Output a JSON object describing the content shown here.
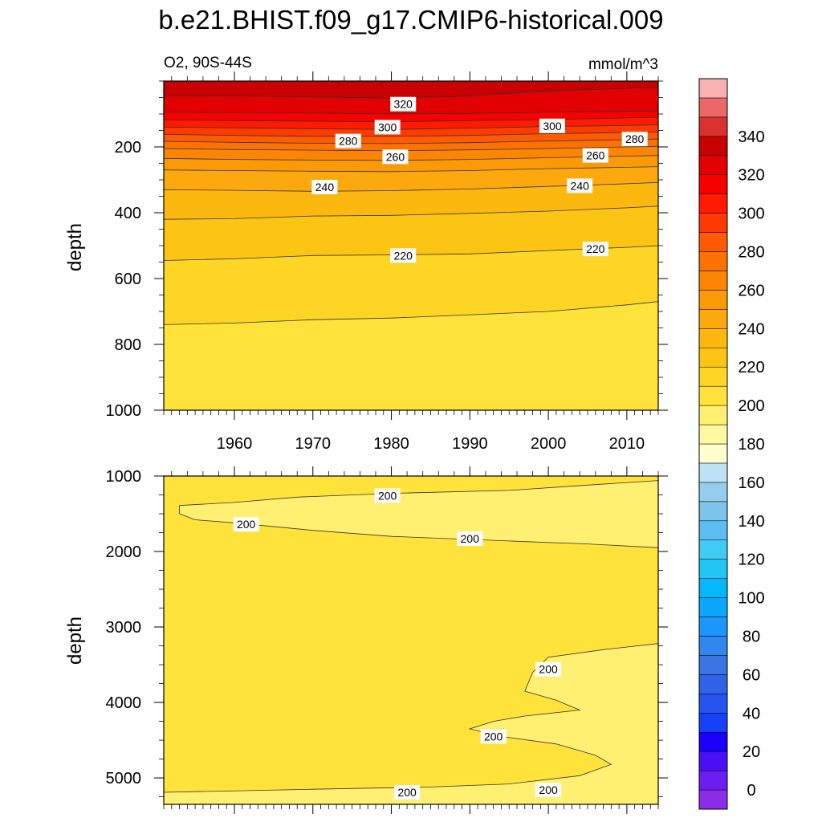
{
  "title": "b.e21.BHIST.f09_g17.CMIP6-historical.009",
  "chart_data": {
    "type": "heatmap",
    "title": "b.e21.BHIST.f09_g17.CMIP6-historical.009",
    "subtitle_left": "O2, 90S-44S",
    "subtitle_right": "mmol/m^3",
    "ylabel": "depth",
    "colorbar": {
      "levels": [
        0,
        10,
        20,
        30,
        40,
        50,
        60,
        70,
        80,
        90,
        100,
        110,
        120,
        130,
        140,
        150,
        160,
        170,
        180,
        190,
        200,
        210,
        220,
        230,
        240,
        250,
        260,
        270,
        280,
        290,
        300,
        310,
        320,
        330,
        340,
        350
      ],
      "labels": [
        "0",
        "20",
        "40",
        "60",
        "80",
        "100",
        "120",
        "140",
        "160",
        "180",
        "200",
        "220",
        "240",
        "260",
        "280",
        "300",
        "320",
        "340"
      ],
      "colors": [
        "#8b2ce8",
        "#6a1ef0",
        "#4a10f5",
        "#1a00fa",
        "#1640f5",
        "#2652ee",
        "#2f63e6",
        "#3a74e0",
        "#2e86ee",
        "#1c96fa",
        "#0aa6ff",
        "#06b8fa",
        "#22c6f5",
        "#40ccf2",
        "#5cbeef",
        "#7cc4ec",
        "#96ccec",
        "#bee2f6",
        "#fffece",
        "#fff8a0",
        "#fff071",
        "#ffe33a",
        "#fdd525",
        "#fdc513",
        "#fcb80f",
        "#fda80c",
        "#fc9906",
        "#fc8604",
        "#fb7102",
        "#fe5b00",
        "#fe3a00",
        "#ff1a00",
        "#f90000",
        "#e30000",
        "#c90000",
        "#d93030",
        "#ea6868",
        "#f8b0b0"
      ]
    },
    "panels": [
      {
        "name": "upper",
        "ylim": [
          1000,
          0
        ],
        "yticks": [
          200,
          400,
          600,
          800,
          1000
        ],
        "xlim": [
          1951,
          2014
        ],
        "xticks": [
          1960,
          1970,
          1980,
          1990,
          2000,
          2010
        ],
        "x": [
          1951,
          1960,
          1970,
          1980,
          1990,
          2000,
          2010,
          2014
        ],
        "contours": [
          {
            "value": 330,
            "depth": [
              45,
              45,
              48,
              52,
              45,
              30,
              22,
              20
            ]
          },
          {
            "value": 320,
            "depth": [
              95,
              96,
              97,
              100,
              98,
              95,
              92,
              90
            ]
          },
          {
            "value": 310,
            "depth": [
              118,
              120,
              122,
              124,
              120,
              117,
              112,
              110
            ]
          },
          {
            "value": 300,
            "depth": [
              140,
              142,
              145,
              147,
              143,
              138,
              135,
              133
            ]
          },
          {
            "value": 290,
            "depth": [
              162,
              165,
              168,
              168,
              165,
              160,
              156,
              155
            ]
          },
          {
            "value": 280,
            "depth": [
              183,
              186,
              189,
              190,
              187,
              182,
              178,
              176
            ]
          },
          {
            "value": 270,
            "depth": [
              205,
              208,
              210,
              212,
              209,
              205,
              200,
              198
            ]
          },
          {
            "value": 260,
            "depth": [
              235,
              238,
              240,
              241,
              238,
              233,
              228,
              226
            ]
          },
          {
            "value": 250,
            "depth": [
              270,
              272,
              274,
              275,
              272,
              266,
              262,
              260
            ]
          },
          {
            "value": 240,
            "depth": [
              330,
              332,
              335,
              333,
              328,
              320,
              312,
              308
            ]
          },
          {
            "value": 230,
            "depth": [
              420,
              418,
              410,
              408,
              402,
              395,
              385,
              380
            ]
          },
          {
            "value": 220,
            "depth": [
              545,
              540,
              530,
              528,
              525,
              515,
              505,
              500
            ]
          },
          {
            "value": 210,
            "depth": [
              740,
              735,
              725,
              720,
              710,
              700,
              680,
              670
            ]
          }
        ],
        "fill_below": 200,
        "contour_labels": [
          {
            "text": "320",
            "x": 1981.5,
            "depth": 70
          },
          {
            "text": "300",
            "x": 1979.5,
            "depth": 140
          },
          {
            "text": "300",
            "x": 2000.5,
            "depth": 136
          },
          {
            "text": "280",
            "x": 1974.5,
            "depth": 182
          },
          {
            "text": "280",
            "x": 2011,
            "depth": 176
          },
          {
            "text": "260",
            "x": 1980.5,
            "depth": 230
          },
          {
            "text": "260",
            "x": 2006,
            "depth": 226
          },
          {
            "text": "240",
            "x": 1971.5,
            "depth": 322
          },
          {
            "text": "240",
            "x": 2004,
            "depth": 318
          },
          {
            "text": "220",
            "x": 1981.5,
            "depth": 530
          },
          {
            "text": "220",
            "x": 2006,
            "depth": 510
          }
        ]
      },
      {
        "name": "lower",
        "ylim": [
          5350,
          1000
        ],
        "yticks": [
          1000,
          2000,
          3000,
          4000,
          5000
        ],
        "xlim": [
          1951,
          2014
        ],
        "xticks": [
          1960,
          1970,
          1980,
          1990,
          2000,
          2010
        ],
        "background_value": 205,
        "regions": [
          {
            "value": 195,
            "points": [
              [
                1953,
                1390
              ],
              [
                1960,
                1350
              ],
              [
                1968,
                1280
              ],
              [
                1980,
                1230
              ],
              [
                1995,
                1190
              ],
              [
                2005,
                1120
              ],
              [
                2014,
                1060
              ],
              [
                2014,
                1950
              ],
              [
                2005,
                1900
              ],
              [
                1995,
                1860
              ],
              [
                1980,
                1800
              ],
              [
                1970,
                1720
              ],
              [
                1960,
                1620
              ],
              [
                1955,
                1580
              ],
              [
                1953,
                1500
              ]
            ]
          },
          {
            "value": 195,
            "points": [
              [
                2014,
                3220
              ],
              [
                2007,
                3300
              ],
              [
                2000,
                3400
              ],
              [
                1998,
                3600
              ],
              [
                1997,
                3850
              ],
              [
                2001,
                3970
              ],
              [
                2004,
                4100
              ],
              [
                1997,
                4180
              ],
              [
                1993,
                4250
              ],
              [
                1990,
                4350
              ],
              [
                1994,
                4450
              ],
              [
                2001,
                4550
              ],
              [
                2006,
                4700
              ],
              [
                2008,
                4820
              ],
              [
                2004,
                4970
              ],
              [
                1995,
                5080
              ],
              [
                1985,
                5120
              ],
              [
                1970,
                5150
              ],
              [
                1951,
                5190
              ],
              [
                1951,
                5350
              ],
              [
                2014,
                5350
              ]
            ]
          }
        ],
        "contour_labels": [
          {
            "text": "200",
            "x": 1979.5,
            "depth": 1260
          },
          {
            "text": "200",
            "x": 1961.5,
            "depth": 1640
          },
          {
            "text": "200",
            "x": 1990,
            "depth": 1830
          },
          {
            "text": "200",
            "x": 2000,
            "depth": 3560
          },
          {
            "text": "200",
            "x": 1993,
            "depth": 4450
          },
          {
            "text": "200",
            "x": 1982,
            "depth": 5190
          },
          {
            "text": "200",
            "x": 2000,
            "depth": 5160
          }
        ]
      }
    ]
  }
}
